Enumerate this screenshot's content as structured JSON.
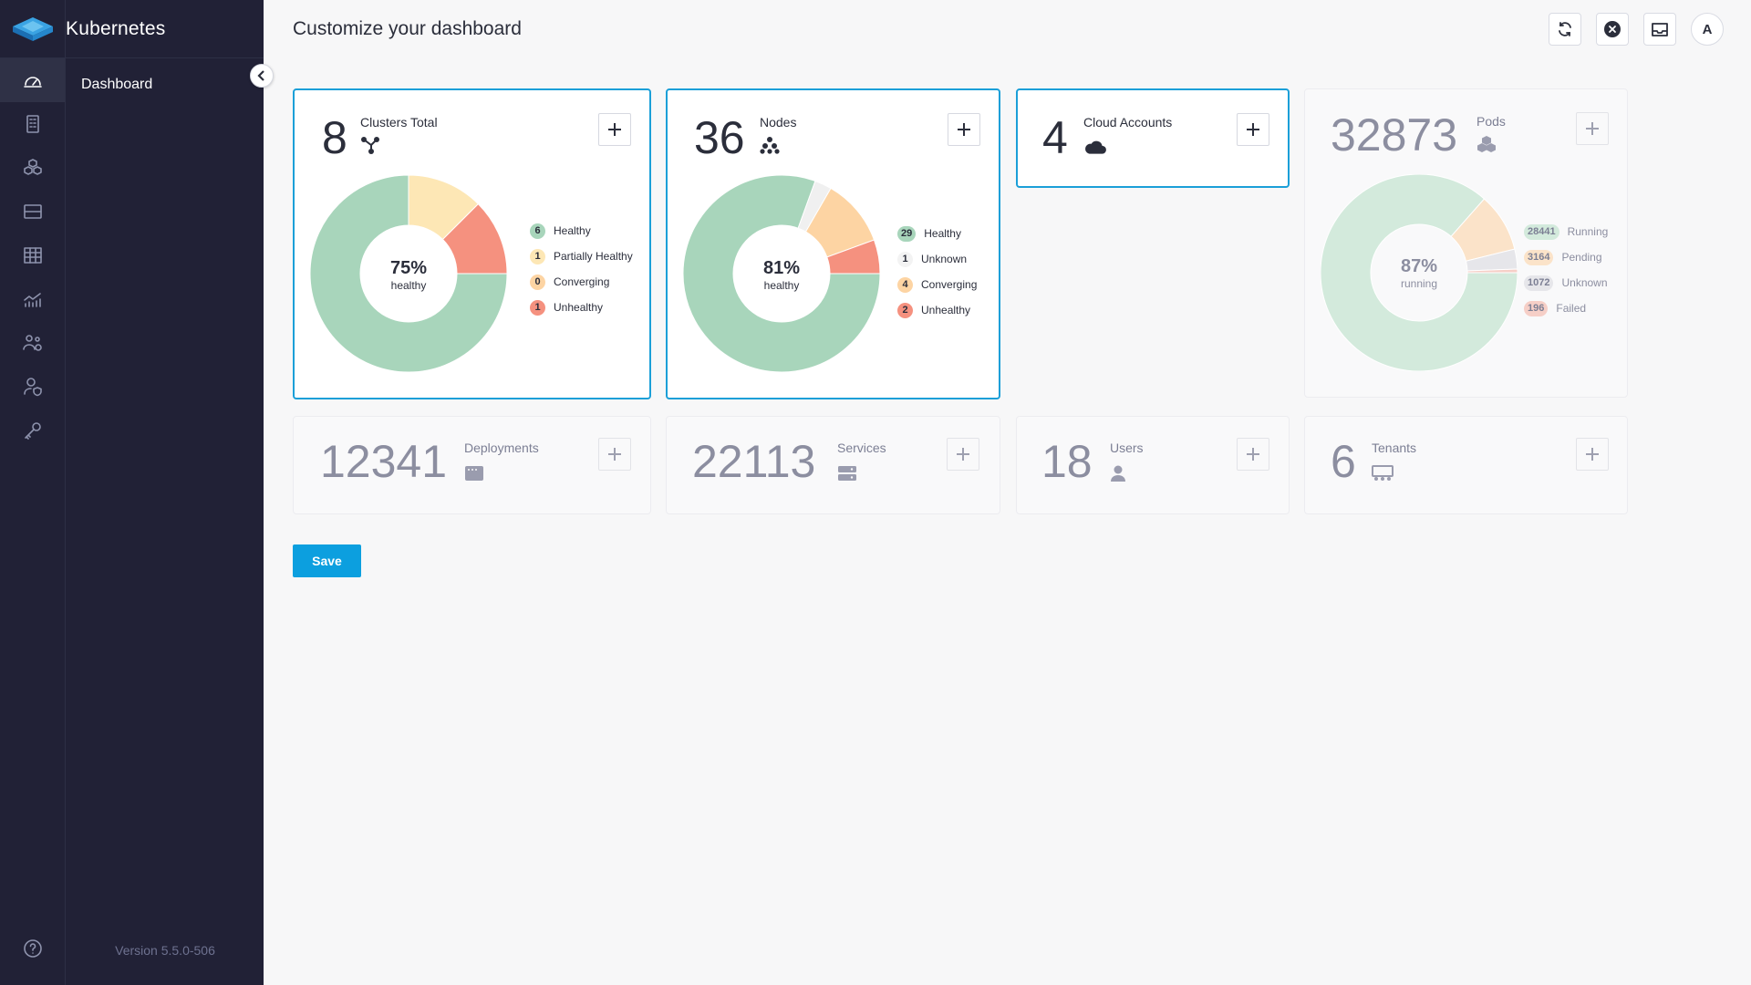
{
  "brand": {
    "name": "Kubernetes"
  },
  "sidebar": {
    "rail_icons": [
      "dashboard-icon",
      "clusters-icon",
      "workloads-icon",
      "storage-icon",
      "table-icon",
      "monitoring-icon",
      "teams-icon",
      "users-icon",
      "keys-icon"
    ],
    "active_item": "Dashboard",
    "version": "Version 5.5.0-506"
  },
  "header": {
    "title": "Customize your dashboard",
    "avatar_initial": "A"
  },
  "cards": {
    "clusters": {
      "count": "8",
      "label": "Clusters Total",
      "center_pct": "75%",
      "center_sub": "healthy",
      "legend": [
        {
          "value": "6",
          "label": "Healthy",
          "color": "#a8d5bb"
        },
        {
          "value": "1",
          "label": "Partially Healthy",
          "color": "#fde7b5"
        },
        {
          "value": "0",
          "label": "Converging",
          "color": "#fdd4a3"
        },
        {
          "value": "1",
          "label": "Unhealthy",
          "color": "#f5917f"
        }
      ]
    },
    "nodes": {
      "count": "36",
      "label": "Nodes",
      "center_pct": "81%",
      "center_sub": "healthy",
      "legend": [
        {
          "value": "29",
          "label": "Healthy",
          "color": "#a8d5bb"
        },
        {
          "value": "1",
          "label": "Unknown",
          "color": "#f0f0f0"
        },
        {
          "value": "4",
          "label": "Converging",
          "color": "#fdd4a3"
        },
        {
          "value": "2",
          "label": "Unhealthy",
          "color": "#f5917f"
        }
      ]
    },
    "cloud_accounts": {
      "count": "4",
      "label": "Cloud Accounts"
    },
    "pods": {
      "count": "32873",
      "label": "Pods",
      "center_pct": "87%",
      "center_sub": "running",
      "legend": [
        {
          "value": "28441",
          "label": "Running",
          "color": "#d3eadc"
        },
        {
          "value": "3164",
          "label": "Pending",
          "color": "#fbe3c9"
        },
        {
          "value": "1072",
          "label": "Unknown",
          "color": "#e6e6ea"
        },
        {
          "value": "196",
          "label": "Failed",
          "color": "#f6cfc7"
        }
      ]
    },
    "deployments": {
      "count": "12341",
      "label": "Deployments"
    },
    "services": {
      "count": "22113",
      "label": "Services"
    },
    "users": {
      "count": "18",
      "label": "Users"
    },
    "tenants": {
      "count": "6",
      "label": "Tenants"
    }
  },
  "actions": {
    "save_label": "Save"
  },
  "chart_data": [
    {
      "type": "pie",
      "categories": [
        "Healthy",
        "Partially Healthy",
        "Converging",
        "Unhealthy"
      ],
      "values": [
        6,
        1,
        0,
        1
      ],
      "colors": [
        "#a8d5bb",
        "#fde7b5",
        "#fdd4a3",
        "#f5917f"
      ]
    },
    {
      "type": "pie",
      "categories": [
        "Healthy",
        "Unknown",
        "Converging",
        "Unhealthy"
      ],
      "values": [
        29,
        1,
        4,
        2
      ],
      "colors": [
        "#a8d5bb",
        "#f0f0f0",
        "#fdd4a3",
        "#f5917f"
      ]
    },
    {
      "type": "pie",
      "categories": [
        "Running",
        "Pending",
        "Unknown",
        "Failed"
      ],
      "values": [
        28441,
        3164,
        1072,
        196
      ],
      "colors": [
        "#d3eadc",
        "#fbe3c9",
        "#e6e6ea",
        "#f6cfc7"
      ]
    }
  ]
}
